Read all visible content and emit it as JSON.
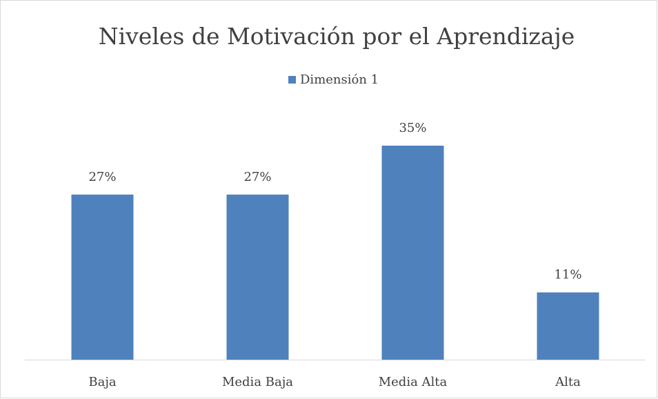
{
  "chart_data": {
    "type": "bar",
    "title": "Niveles de Motivación por el Aprendizaje",
    "categories": [
      "Baja",
      "Media Baja",
      "Media Alta",
      "Alta"
    ],
    "series": [
      {
        "name": "Dimensión 1",
        "color": "#4f81bd",
        "values": [
          27,
          27,
          35,
          11
        ],
        "value_labels": [
          "27%",
          "27%",
          "35%",
          "11%"
        ]
      }
    ],
    "legend": "top"
  }
}
